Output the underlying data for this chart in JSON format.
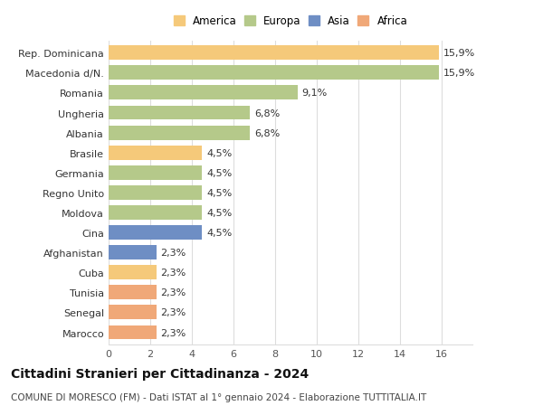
{
  "categories": [
    "Marocco",
    "Senegal",
    "Tunisia",
    "Cuba",
    "Afghanistan",
    "Cina",
    "Moldova",
    "Regno Unito",
    "Germania",
    "Brasile",
    "Albania",
    "Ungheria",
    "Romania",
    "Macedonia d/N.",
    "Rep. Dominicana"
  ],
  "values": [
    2.3,
    2.3,
    2.3,
    2.3,
    2.3,
    4.5,
    4.5,
    4.5,
    4.5,
    4.5,
    6.8,
    6.8,
    9.1,
    15.9,
    15.9
  ],
  "colors": [
    "#f0a878",
    "#f0a878",
    "#f0a878",
    "#f5c97a",
    "#6e8ec4",
    "#6e8ec4",
    "#b5c98a",
    "#b5c98a",
    "#b5c98a",
    "#f5c97a",
    "#b5c98a",
    "#b5c98a",
    "#b5c98a",
    "#b5c98a",
    "#f5c97a"
  ],
  "labels": [
    "2,3%",
    "2,3%",
    "2,3%",
    "2,3%",
    "2,3%",
    "4,5%",
    "4,5%",
    "4,5%",
    "4,5%",
    "4,5%",
    "6,8%",
    "6,8%",
    "9,1%",
    "15,9%",
    "15,9%"
  ],
  "title": "Cittadini Stranieri per Cittadinanza - 2024",
  "subtitle": "COMUNE DI MORESCO (FM) - Dati ISTAT al 1° gennaio 2024 - Elaborazione TUTTITALIA.IT",
  "xlim": [
    0,
    17.5
  ],
  "xticks": [
    0,
    2,
    4,
    6,
    8,
    10,
    12,
    14,
    16
  ],
  "legend_entries": [
    {
      "label": "America",
      "color": "#f5c97a"
    },
    {
      "label": "Europa",
      "color": "#b5c98a"
    },
    {
      "label": "Asia",
      "color": "#6e8ec4"
    },
    {
      "label": "Africa",
      "color": "#f0a878"
    }
  ],
  "background_color": "#ffffff",
  "grid_color": "#dddddd",
  "bar_height": 0.72,
  "label_fontsize": 8,
  "tick_fontsize": 8,
  "title_fontsize": 10,
  "subtitle_fontsize": 7.5
}
